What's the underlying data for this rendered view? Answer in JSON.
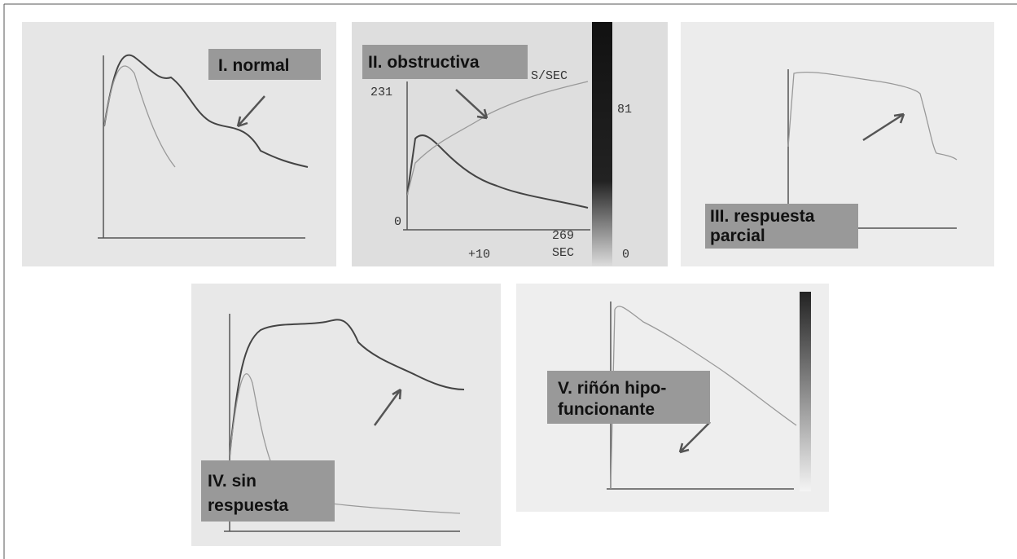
{
  "panels": [
    {
      "label": [
        "I. normal"
      ]
    },
    {
      "label": [
        "II. obstructiva"
      ],
      "readouts": [
        "231",
        "S/SEC",
        "81",
        "0",
        "269",
        "SEC",
        "+10",
        "0"
      ]
    },
    {
      "label": [
        "III. respuesta",
        "parcial"
      ]
    },
    {
      "label": [
        "IV.  sin",
        "respuesta"
      ]
    },
    {
      "label": [
        "V. riñón hipo-",
        "funcionante"
      ]
    }
  ]
}
